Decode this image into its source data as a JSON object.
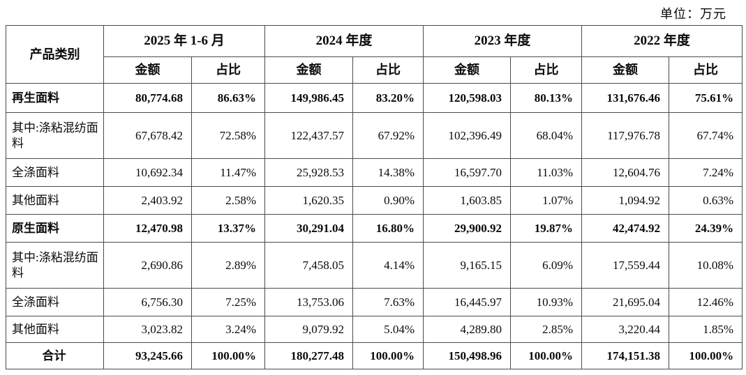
{
  "unit_label": "单位：万元",
  "table": {
    "category_header": "产品类别",
    "period_headers": [
      "2025 年 1-6 月",
      "2024 年度",
      "2023 年度",
      "2022 年度"
    ],
    "sub_headers": {
      "amount": "金额",
      "ratio": "占比"
    },
    "rows": [
      {
        "category": "再生面料",
        "bold": true,
        "total": false,
        "height": "h42",
        "values": [
          "80,774.68",
          "86.63%",
          "149,986.45",
          "83.20%",
          "120,598.03",
          "80.13%",
          "131,676.46",
          "75.61%"
        ]
      },
      {
        "category": "其中:涤粘混纺面料",
        "bold": false,
        "total": false,
        "height": "h66",
        "values": [
          "67,678.42",
          "72.58%",
          "122,437.57",
          "67.92%",
          "102,396.49",
          "68.04%",
          "117,976.78",
          "67.74%"
        ]
      },
      {
        "category": "全涤面料",
        "bold": false,
        "total": false,
        "height": "h40",
        "values": [
          "10,692.34",
          "11.47%",
          "25,928.53",
          "14.38%",
          "16,597.70",
          "11.03%",
          "12,604.76",
          "7.24%"
        ]
      },
      {
        "category": "其他面料",
        "bold": false,
        "total": false,
        "height": "h40",
        "values": [
          "2,403.92",
          "2.58%",
          "1,620.35",
          "0.90%",
          "1,603.85",
          "1.07%",
          "1,094.92",
          "0.63%"
        ]
      },
      {
        "category": "原生面料",
        "bold": true,
        "total": false,
        "height": "h40",
        "values": [
          "12,470.98",
          "13.37%",
          "30,291.04",
          "16.80%",
          "29,900.92",
          "19.87%",
          "42,474.92",
          "24.39%"
        ]
      },
      {
        "category": "其中:涤粘混纺面料",
        "bold": false,
        "total": false,
        "height": "h66",
        "values": [
          "2,690.86",
          "2.89%",
          "7,458.05",
          "4.14%",
          "9,165.15",
          "6.09%",
          "17,559.44",
          "10.08%"
        ]
      },
      {
        "category": "全涤面料",
        "bold": false,
        "total": false,
        "height": "h40",
        "values": [
          "6,756.30",
          "7.25%",
          "13,753.06",
          "7.63%",
          "16,445.97",
          "10.93%",
          "21,695.04",
          "12.46%"
        ]
      },
      {
        "category": "其他面料",
        "bold": false,
        "total": false,
        "height": "h38",
        "values": [
          "3,023.82",
          "3.24%",
          "9,079.92",
          "5.04%",
          "4,289.80",
          "2.85%",
          "3,220.44",
          "1.85%"
        ]
      },
      {
        "category": "合计",
        "bold": true,
        "total": true,
        "height": "h38",
        "values": [
          "93,245.66",
          "100.00%",
          "180,277.48",
          "100.00%",
          "150,498.96",
          "100.00%",
          "174,151.38",
          "100.00%"
        ]
      }
    ]
  }
}
